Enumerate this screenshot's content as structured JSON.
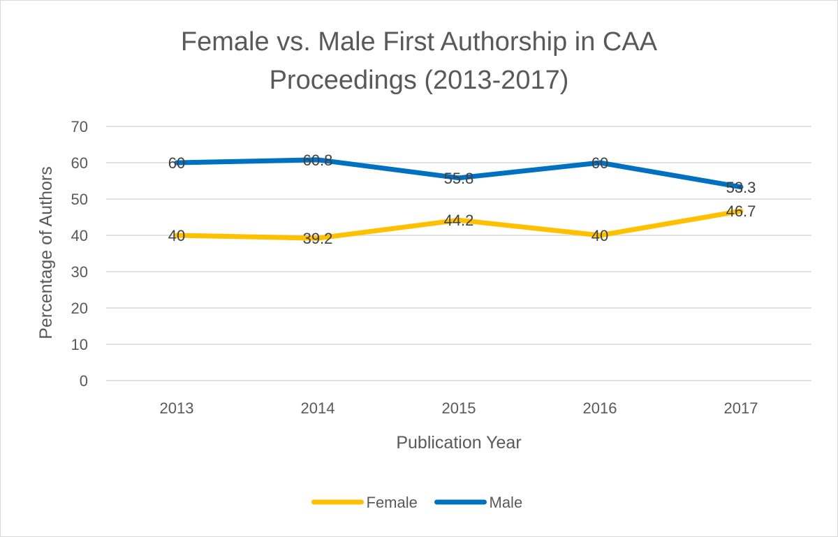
{
  "chart_data": {
    "type": "line",
    "title_lines": [
      "Female vs. Male First Authorship in CAA",
      "Proceedings (2013-2017)"
    ],
    "xlabel": "Publication Year",
    "ylabel": "Percentage of Authors",
    "categories": [
      "2013",
      "2014",
      "2015",
      "2016",
      "2017"
    ],
    "ylim": [
      0,
      70
    ],
    "yticks": [
      0,
      10,
      20,
      30,
      40,
      50,
      60,
      70
    ],
    "grid": true,
    "legend_position": "bottom",
    "series": [
      {
        "name": "Female",
        "color": "#FFC000",
        "values": [
          40,
          39.2,
          44.2,
          40,
          46.7
        ],
        "labels": [
          "40",
          "39.2",
          "44.2",
          "40",
          "46.7"
        ]
      },
      {
        "name": "Male",
        "color": "#0070C0",
        "values": [
          60,
          60.8,
          55.8,
          60,
          53.3
        ],
        "labels": [
          "60",
          "60.8",
          "55.8",
          "60",
          "53.3"
        ]
      }
    ]
  }
}
